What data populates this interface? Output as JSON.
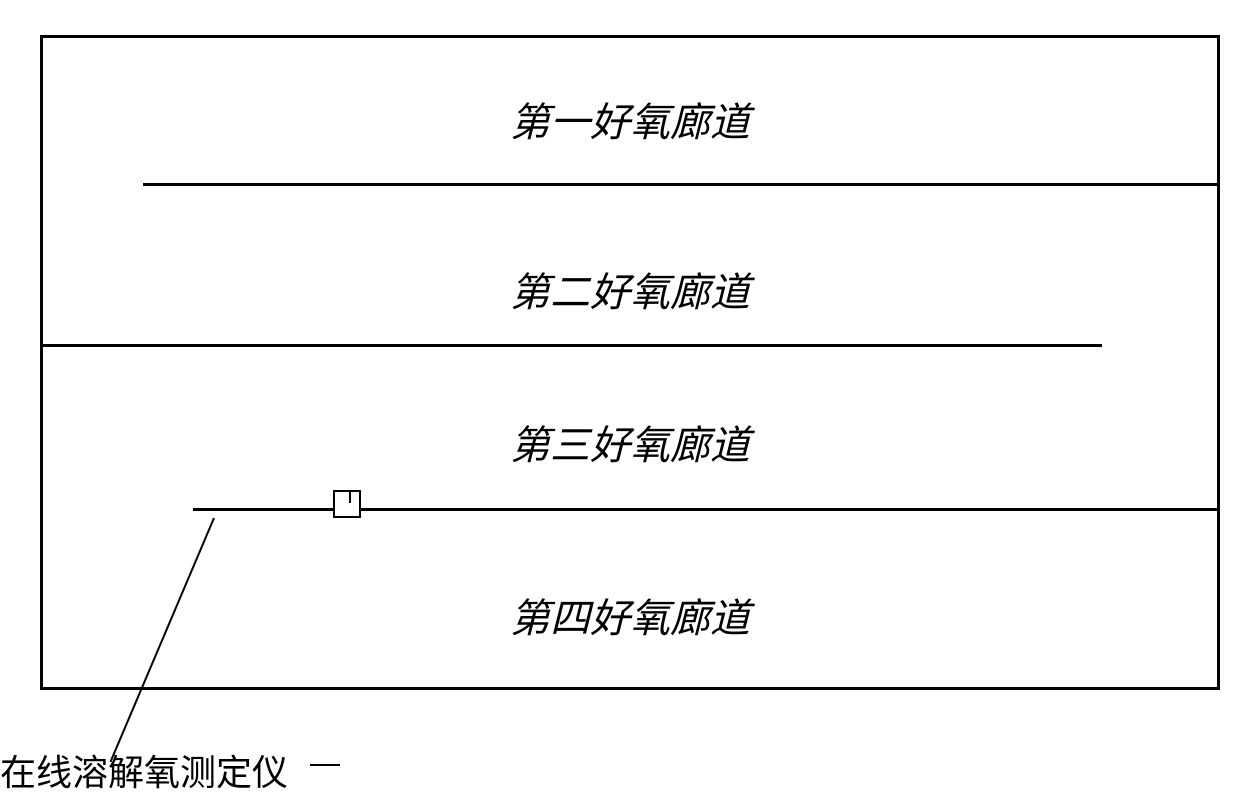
{
  "diagram": {
    "type": "flowchart",
    "background_color": "#ffffff",
    "border_color": "#000000",
    "border_width": 3,
    "font_family": "KaiTi",
    "corridors": [
      {
        "label": "第一好氧廊道",
        "fontsize": 40
      },
      {
        "label": "第二好氧廊道",
        "fontsize": 40
      },
      {
        "label": "第三好氧廊道",
        "fontsize": 40
      },
      {
        "label": "第四好氧廊道",
        "fontsize": 40
      }
    ],
    "sensor": {
      "label": "在线溶解氧测定仪",
      "label_fontsize": 36,
      "box_size": 28,
      "box_border_width": 2
    },
    "dividers": {
      "count": 3,
      "color": "#000000",
      "width": 3
    }
  }
}
